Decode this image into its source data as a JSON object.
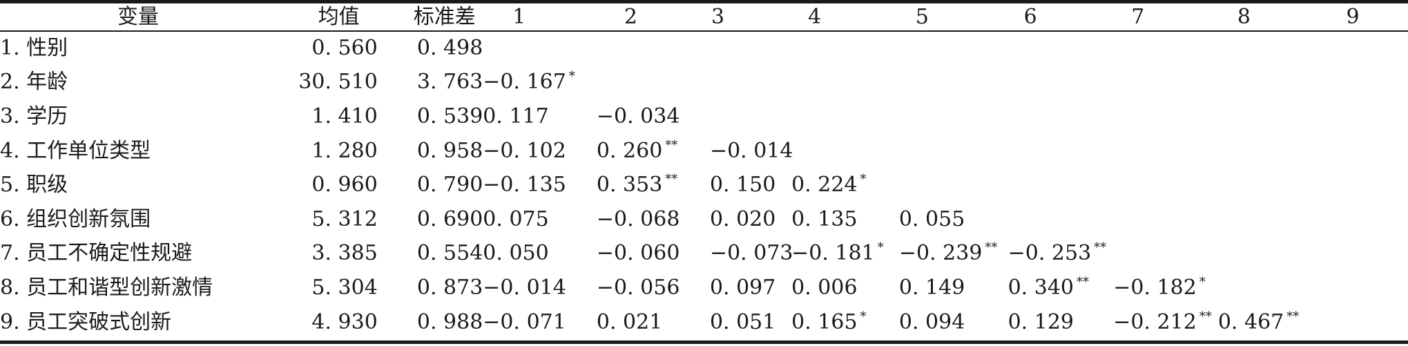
{
  "columns": {
    "variable": "变量",
    "mean": "均值",
    "sd": "标准差",
    "indices": [
      "1",
      "2",
      "3",
      "4",
      "5",
      "6",
      "7",
      "8",
      "9"
    ]
  },
  "rows": [
    {
      "label": "1. 性别",
      "mean": "0. 560",
      "sd": "0. 498",
      "cells": [
        {
          "value": "",
          "sig": ""
        },
        {
          "value": "",
          "sig": ""
        },
        {
          "value": "",
          "sig": ""
        },
        {
          "value": "",
          "sig": ""
        },
        {
          "value": "",
          "sig": ""
        },
        {
          "value": "",
          "sig": ""
        },
        {
          "value": "",
          "sig": ""
        },
        {
          "value": "",
          "sig": ""
        },
        {
          "value": "",
          "sig": ""
        }
      ]
    },
    {
      "label": "2. 年龄",
      "mean": "30. 510",
      "sd": "3. 763",
      "cells": [
        {
          "value": "−0. 167",
          "sig": "*"
        },
        {
          "value": "",
          "sig": ""
        },
        {
          "value": "",
          "sig": ""
        },
        {
          "value": "",
          "sig": ""
        },
        {
          "value": "",
          "sig": ""
        },
        {
          "value": "",
          "sig": ""
        },
        {
          "value": "",
          "sig": ""
        },
        {
          "value": "",
          "sig": ""
        },
        {
          "value": "",
          "sig": ""
        }
      ]
    },
    {
      "label": "3. 学历",
      "mean": "1. 410",
      "sd": "0. 539",
      "cells": [
        {
          "value": "0. 117",
          "sig": ""
        },
        {
          "value": "−0. 034",
          "sig": ""
        },
        {
          "value": "",
          "sig": ""
        },
        {
          "value": "",
          "sig": ""
        },
        {
          "value": "",
          "sig": ""
        },
        {
          "value": "",
          "sig": ""
        },
        {
          "value": "",
          "sig": ""
        },
        {
          "value": "",
          "sig": ""
        },
        {
          "value": "",
          "sig": ""
        }
      ]
    },
    {
      "label": "4. 工作单位类型",
      "mean": "1. 280",
      "sd": "0. 958",
      "cells": [
        {
          "value": "−0. 102",
          "sig": ""
        },
        {
          "value": "0. 260",
          "sig": "**"
        },
        {
          "value": "−0. 014",
          "sig": ""
        },
        {
          "value": "",
          "sig": ""
        },
        {
          "value": "",
          "sig": ""
        },
        {
          "value": "",
          "sig": ""
        },
        {
          "value": "",
          "sig": ""
        },
        {
          "value": "",
          "sig": ""
        },
        {
          "value": "",
          "sig": ""
        }
      ]
    },
    {
      "label": "5. 职级",
      "mean": "0. 960",
      "sd": "0. 790",
      "cells": [
        {
          "value": "−0. 135",
          "sig": ""
        },
        {
          "value": "0. 353",
          "sig": "**"
        },
        {
          "value": "0. 150",
          "sig": ""
        },
        {
          "value": "0. 224",
          "sig": "*"
        },
        {
          "value": "",
          "sig": ""
        },
        {
          "value": "",
          "sig": ""
        },
        {
          "value": "",
          "sig": ""
        },
        {
          "value": "",
          "sig": ""
        },
        {
          "value": "",
          "sig": ""
        }
      ]
    },
    {
      "label": "6. 组织创新氛围",
      "mean": "5. 312",
      "sd": "0. 690",
      "cells": [
        {
          "value": "0. 075",
          "sig": ""
        },
        {
          "value": "−0. 068",
          "sig": ""
        },
        {
          "value": "0. 020",
          "sig": ""
        },
        {
          "value": "0. 135",
          "sig": ""
        },
        {
          "value": "0. 055",
          "sig": ""
        },
        {
          "value": "",
          "sig": ""
        },
        {
          "value": "",
          "sig": ""
        },
        {
          "value": "",
          "sig": ""
        },
        {
          "value": "",
          "sig": ""
        }
      ]
    },
    {
      "label": "7. 员工不确定性规避",
      "mean": "3. 385",
      "sd": "0. 554",
      "cells": [
        {
          "value": "0. 050",
          "sig": ""
        },
        {
          "value": "−0. 060",
          "sig": ""
        },
        {
          "value": "−0. 073",
          "sig": ""
        },
        {
          "value": "−0. 181",
          "sig": "*"
        },
        {
          "value": "−0. 239",
          "sig": "**"
        },
        {
          "value": "−0. 253",
          "sig": "**"
        },
        {
          "value": "",
          "sig": ""
        },
        {
          "value": "",
          "sig": ""
        },
        {
          "value": "",
          "sig": ""
        }
      ]
    },
    {
      "label": "8. 员工和谐型创新激情",
      "mean": "5. 304",
      "sd": "0. 873",
      "cells": [
        {
          "value": "−0. 014",
          "sig": ""
        },
        {
          "value": "−0. 056",
          "sig": ""
        },
        {
          "value": "0. 097",
          "sig": ""
        },
        {
          "value": "0. 006",
          "sig": ""
        },
        {
          "value": "0. 149",
          "sig": ""
        },
        {
          "value": "0. 340",
          "sig": "**"
        },
        {
          "value": "−0. 182",
          "sig": "*"
        },
        {
          "value": "",
          "sig": ""
        },
        {
          "value": "",
          "sig": ""
        }
      ]
    },
    {
      "label": "9. 员工突破式创新",
      "mean": "4. 930",
      "sd": "0. 988",
      "cells": [
        {
          "value": "−0. 071",
          "sig": ""
        },
        {
          "value": "0. 021",
          "sig": ""
        },
        {
          "value": "0. 051",
          "sig": ""
        },
        {
          "value": "0. 165",
          "sig": "*"
        },
        {
          "value": "0. 094",
          "sig": ""
        },
        {
          "value": "0. 129",
          "sig": ""
        },
        {
          "value": "−0. 212",
          "sig": "**"
        },
        {
          "value": "0. 467",
          "sig": "**"
        },
        {
          "value": "",
          "sig": ""
        }
      ]
    }
  ]
}
